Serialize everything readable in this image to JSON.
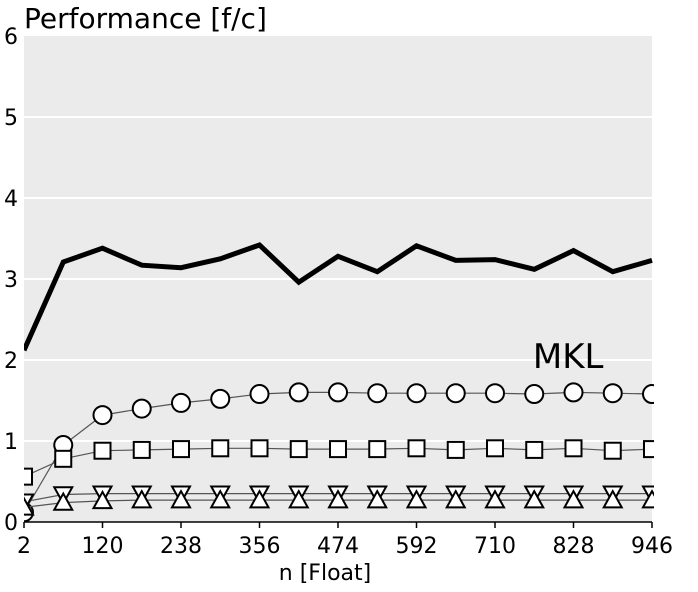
{
  "chart_data": {
    "type": "line",
    "title": "Performance [f/c]",
    "xlabel": "n [Float]",
    "ylabel": "",
    "xlim": [
      2,
      946
    ],
    "ylim": [
      0,
      6
    ],
    "x_ticks": [
      2,
      120,
      238,
      356,
      474,
      592,
      710,
      828,
      946
    ],
    "y_ticks": [
      0,
      1,
      2,
      3,
      4,
      5,
      6
    ],
    "grid": "horizontal",
    "background": "#ebebeb",
    "annotations": [
      {
        "text": "MKL",
        "x": 820,
        "y": 2.05
      }
    ],
    "x": [
      2,
      61,
      120,
      179,
      238,
      297,
      356,
      415,
      474,
      533,
      592,
      651,
      710,
      769,
      828,
      887,
      946
    ],
    "series": [
      {
        "name": "MKL",
        "marker": "none",
        "style": "bold",
        "values": [
          2.12,
          3.21,
          3.38,
          3.17,
          3.14,
          3.25,
          3.42,
          2.96,
          3.28,
          3.09,
          3.41,
          3.23,
          3.24,
          3.12,
          3.35,
          3.09,
          3.23
        ]
      },
      {
        "marker": "circle",
        "values": [
          0.12,
          0.95,
          1.32,
          1.4,
          1.47,
          1.52,
          1.58,
          1.6,
          1.6,
          1.59,
          1.59,
          1.59,
          1.59,
          1.58,
          1.6,
          1.59,
          1.58
        ]
      },
      {
        "marker": "square",
        "values": [
          0.56,
          0.78,
          0.88,
          0.89,
          0.9,
          0.91,
          0.91,
          0.9,
          0.9,
          0.9,
          0.91,
          0.89,
          0.91,
          0.89,
          0.91,
          0.88,
          0.9
        ]
      },
      {
        "marker": "triangle-down",
        "values": [
          0.25,
          0.34,
          0.35,
          0.35,
          0.35,
          0.35,
          0.35,
          0.35,
          0.35,
          0.35,
          0.35,
          0.35,
          0.35,
          0.35,
          0.35,
          0.35,
          0.35
        ]
      },
      {
        "marker": "triangle-up",
        "values": [
          0.18,
          0.24,
          0.26,
          0.27,
          0.27,
          0.27,
          0.27,
          0.27,
          0.27,
          0.27,
          0.27,
          0.27,
          0.27,
          0.27,
          0.27,
          0.27,
          0.27
        ]
      }
    ]
  }
}
